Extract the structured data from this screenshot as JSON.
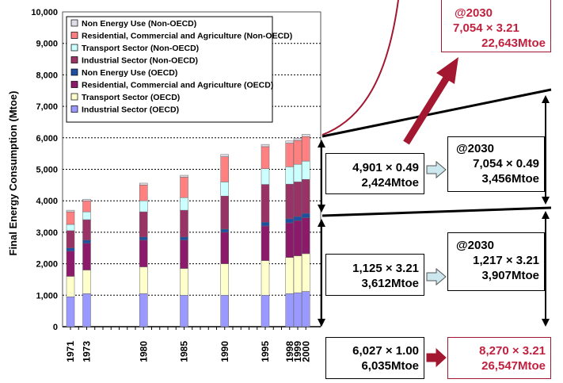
{
  "chart_data": {
    "type": "bar",
    "stacked": true,
    "ylabel": "Final Energy Consumption (Mtoe)",
    "ylim": [
      0,
      10000
    ],
    "yticks": [
      "0",
      "1,000",
      "2,000",
      "3,000",
      "4,000",
      "5,000",
      "6,000",
      "7,000",
      "8,000",
      "9,000",
      "10,000"
    ],
    "grid": true,
    "legend_position": "top-left",
    "categories": [
      "1971",
      "1973",
      "1980",
      "1985",
      "1990",
      "1995",
      "1998",
      "1999",
      "2000"
    ],
    "series": [
      {
        "name": "Industrial Sector (OECD)",
        "color": "#9999ff",
        "values": [
          950,
          1050,
          1050,
          1000,
          1000,
          1000,
          1050,
          1080,
          1120
        ]
      },
      {
        "name": "Transport Sector (OECD)",
        "color": "#ffffcc",
        "values": [
          650,
          750,
          850,
          850,
          1000,
          1100,
          1150,
          1170,
          1200
        ]
      },
      {
        "name": "Residential, Commercial and Agriculture (OECD)",
        "color": "#8b1a6b",
        "values": [
          800,
          850,
          850,
          900,
          1000,
          1100,
          1100,
          1120,
          1140
        ]
      },
      {
        "name": "Non Energy Use (OECD)",
        "color": "#1f4fa0",
        "values": [
          100,
          100,
          100,
          100,
          100,
          120,
          130,
          130,
          140
        ]
      },
      {
        "name": "Industrial Sector (Non-OECD)",
        "color": "#993366",
        "values": [
          550,
          650,
          800,
          850,
          1050,
          1200,
          1100,
          1100,
          1080
        ]
      },
      {
        "name": "Transport Sector (Non-OECD)",
        "color": "#ccffff",
        "values": [
          200,
          250,
          350,
          400,
          450,
          500,
          550,
          560,
          580
        ]
      },
      {
        "name": "Residential, Commercial and Agriculture (Non-OECD)",
        "color": "#ff8080",
        "values": [
          400,
          350,
          500,
          650,
          800,
          700,
          750,
          760,
          780
        ]
      },
      {
        "name": "Non Energy Use (Non-OECD)",
        "color": "#dedee8",
        "values": [
          50,
          50,
          60,
          60,
          70,
          70,
          70,
          70,
          70
        ]
      }
    ]
  },
  "annotations": {
    "top_right": {
      "line1": "@2030",
      "line2": "7,054 × 3.21",
      "line3": "22,643Mtoe"
    },
    "upper_left_box": {
      "line1": "4,901 × 0.49",
      "line2": "2,424Mtoe"
    },
    "upper_right_box": {
      "line1": "@2030",
      "line2": "7,054 × 0.49",
      "line3": "3,456Mtoe"
    },
    "lower_left_box": {
      "line1": "1,125 × 3.21",
      "line2": "3,612Mtoe"
    },
    "lower_right_box": {
      "line1": "@2030",
      "line2": "1,217 × 3.21",
      "line3": "3,907Mtoe"
    },
    "bottom_left_box": {
      "line1": "6,027 × 1.00",
      "line2": "6,035Mtoe"
    },
    "bottom_right_box": {
      "line1": "8,270 × 3.21",
      "line2": "26,547Mtoe"
    }
  },
  "colors": {
    "accent_red": "#a31830",
    "arrow_fill": "#cce8ee"
  }
}
